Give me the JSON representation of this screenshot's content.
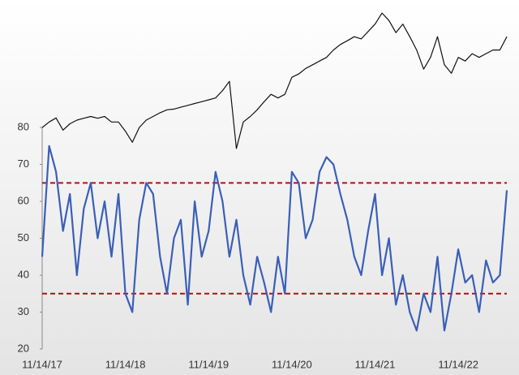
{
  "chart_data": {
    "type": "line",
    "categories": [
      "11/14/17",
      null,
      null,
      null,
      null,
      null,
      null,
      null,
      null,
      null,
      null,
      null,
      "11/14/18",
      null,
      null,
      null,
      null,
      null,
      null,
      null,
      null,
      null,
      null,
      null,
      "11/14/19",
      null,
      null,
      null,
      null,
      null,
      null,
      null,
      null,
      null,
      null,
      null,
      "11/14/20",
      null,
      null,
      null,
      null,
      null,
      null,
      null,
      null,
      null,
      null,
      null,
      "11/14/21",
      null,
      null,
      null,
      null,
      null,
      null,
      null,
      null,
      null,
      null,
      null,
      "11/14/22",
      null,
      null,
      null,
      null,
      null,
      null,
      null
    ],
    "series": [
      {
        "color": "#3a5fb8",
        "values": [
          45,
          75,
          68,
          52,
          62,
          40,
          58,
          65,
          50,
          60,
          45,
          62,
          35,
          30,
          55,
          65,
          62,
          45,
          35,
          50,
          55,
          32,
          60,
          45,
          52,
          68,
          60,
          45,
          55,
          40,
          32,
          45,
          38,
          30,
          45,
          35,
          68,
          65,
          50,
          55,
          68,
          72,
          70,
          62,
          55,
          45,
          40,
          52,
          62,
          40,
          50,
          32,
          40,
          30,
          25,
          35,
          30,
          45,
          25,
          35,
          47,
          38,
          40,
          30,
          44,
          38,
          40,
          63
        ]
      },
      {
        "color": "#111111",
        "values": [
          80,
          81.5,
          82.6,
          79.3,
          81,
          82,
          82.5,
          83,
          82.5,
          83,
          81.5,
          81.5,
          79,
          76,
          80,
          82,
          83,
          84,
          84.8,
          85,
          85.5,
          86,
          86.5,
          87,
          87.5,
          88,
          90,
          92.5,
          74.3,
          81.5,
          83,
          84.8,
          87,
          89,
          88,
          89,
          93.6,
          94.5,
          96,
          97,
          98,
          99,
          101,
          102.5,
          103.5,
          104.6,
          104,
          106,
          108,
          111,
          109,
          105.7,
          108,
          104.6,
          101,
          95.8,
          99,
          104.6,
          97,
          94.7,
          99,
          98,
          100,
          99,
          100,
          101,
          101,
          104.6
        ]
      }
    ],
    "reference_lines": [
      {
        "value": 65,
        "color": "#b01010"
      },
      {
        "value": 35,
        "color": "#b01010"
      }
    ],
    "ylim": [
      20,
      113
    ],
    "yticks": [
      20,
      30,
      40,
      50,
      60,
      70,
      80
    ]
  }
}
